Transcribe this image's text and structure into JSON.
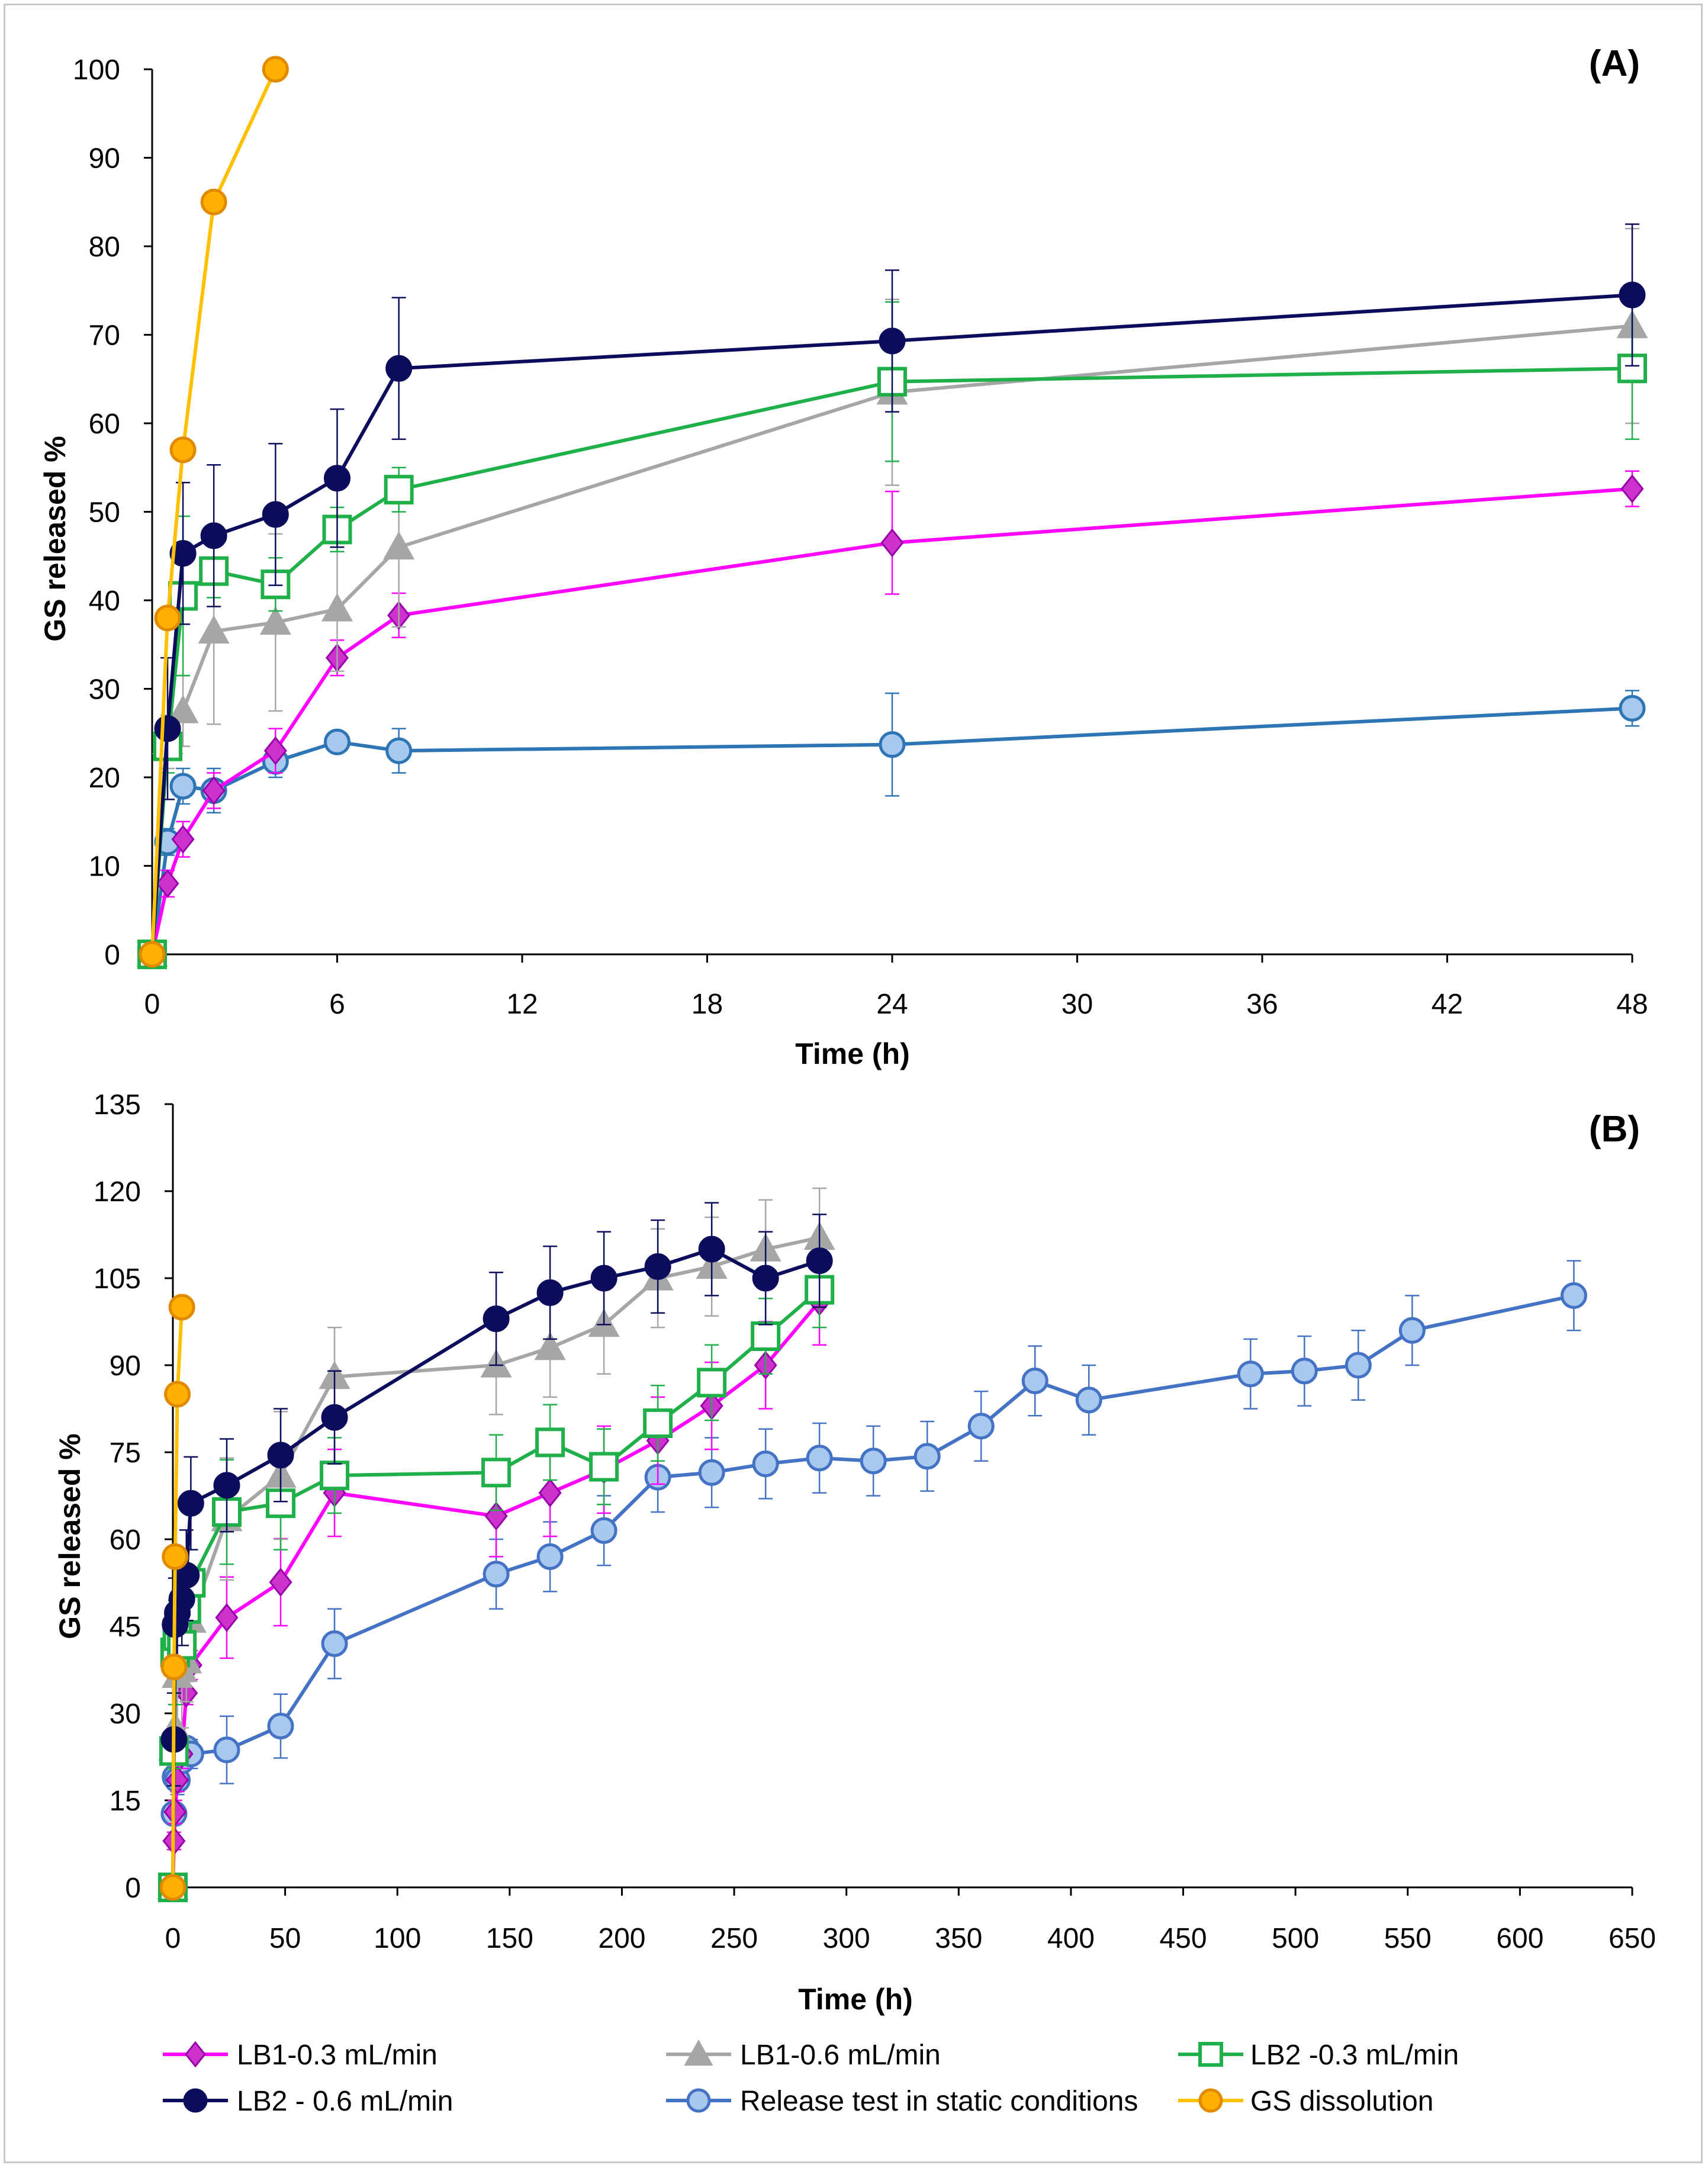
{
  "chart_data": [
    {
      "id": "A",
      "type": "line",
      "panel_label": "(A)",
      "xlabel": "Time (h)",
      "ylabel": "GS released %",
      "xlim": [
        0,
        48
      ],
      "ylim": [
        0,
        100
      ],
      "x_ticks": [
        0,
        6,
        12,
        18,
        24,
        30,
        36,
        42,
        48
      ],
      "y_ticks": [
        0,
        10,
        20,
        30,
        40,
        50,
        60,
        70,
        80,
        90,
        100
      ],
      "series": [
        {
          "key": "lb1_03",
          "name": "LB1-0.3 mL/min",
          "x": [
            0,
            0.5,
            1,
            2,
            4,
            6,
            8,
            24,
            48
          ],
          "y": [
            0,
            8,
            13,
            18.5,
            23,
            33.5,
            38.3,
            46.5,
            52.6
          ],
          "err": [
            0,
            1.5,
            2,
            2,
            2.5,
            2,
            2.5,
            5.8,
            2
          ]
        },
        {
          "key": "lb1_06",
          "name": "LB1-0.6 mL/min",
          "x": [
            0,
            0.5,
            1,
            2,
            4,
            6,
            8,
            24,
            48
          ],
          "y": [
            0,
            24,
            27.5,
            36.5,
            37.5,
            39,
            46,
            63.5,
            71
          ],
          "err": [
            0,
            3,
            4,
            10.5,
            10,
            7,
            9,
            10.5,
            11
          ]
        },
        {
          "key": "lb2_03",
          "name": "LB2 -0.3 mL/min",
          "x": [
            0,
            0.5,
            1,
            2,
            4,
            6,
            8,
            24,
            48
          ],
          "y": [
            0,
            23.5,
            40.5,
            43.3,
            41.8,
            48,
            52.5,
            64.7,
            66.2
          ],
          "err": [
            0,
            3,
            9,
            3,
            3,
            2.5,
            2.5,
            9,
            8
          ]
        },
        {
          "key": "lb2_06",
          "name": "LB2 - 0.6 mL/min",
          "x": [
            0,
            0.5,
            1,
            2,
            4,
            6,
            8,
            24,
            48
          ],
          "y": [
            0,
            25.5,
            45.3,
            47.3,
            49.7,
            53.8,
            66.2,
            69.3,
            74.5
          ],
          "err": [
            0,
            8,
            8,
            8,
            8,
            7.8,
            8,
            8,
            8
          ]
        },
        {
          "key": "static",
          "name": "Release test in static conditions",
          "x": [
            0,
            0.5,
            1,
            2,
            4,
            6,
            8,
            24,
            48
          ],
          "y": [
            0,
            12.7,
            19,
            18.5,
            21.8,
            24,
            23,
            23.7,
            27.8
          ],
          "err": [
            0,
            1.5,
            2,
            2.5,
            1.8,
            0.5,
            2.5,
            5.8,
            2
          ]
        },
        {
          "key": "dissolution",
          "name": "GS dissolution",
          "x": [
            0,
            0.5,
            1,
            2,
            4
          ],
          "y": [
            0,
            38,
            57,
            85,
            100
          ],
          "err": [
            0,
            0,
            0,
            0,
            0
          ]
        }
      ]
    },
    {
      "id": "B",
      "type": "line",
      "panel_label": "(B)",
      "xlabel": "Time (h)",
      "ylabel": "GS  released %",
      "xlim": [
        0,
        650
      ],
      "ylim": [
        0,
        135
      ],
      "x_ticks": [
        0,
        50,
        100,
        150,
        200,
        250,
        300,
        350,
        400,
        450,
        500,
        550,
        600,
        650
      ],
      "y_ticks": [
        0,
        15,
        30,
        45,
        60,
        75,
        90,
        105,
        120,
        135
      ],
      "series": [
        {
          "key": "lb1_03",
          "name": "LB1-0.3 mL/min",
          "x": [
            0,
            0.5,
            1,
            2,
            4,
            6,
            8,
            24,
            48,
            72,
            144,
            168,
            192,
            216,
            240,
            264,
            288
          ],
          "y": [
            0,
            8,
            13,
            18.5,
            23,
            33.5,
            38.3,
            46.5,
            52.6,
            68,
            64,
            68,
            72,
            77,
            83,
            90,
            101
          ],
          "err": [
            0,
            1.5,
            2,
            2,
            2.5,
            2,
            2.5,
            7,
            7.5,
            7.5,
            7,
            7.5,
            7.5,
            7.5,
            7.5,
            7.5,
            7.5
          ]
        },
        {
          "key": "lb1_06",
          "name": "LB1-0.6 mL/min",
          "x": [
            0,
            0.5,
            1,
            2,
            4,
            6,
            8,
            24,
            48,
            72,
            144,
            168,
            192,
            216,
            240,
            264,
            288
          ],
          "y": [
            0,
            24,
            27.5,
            36.5,
            37.5,
            39,
            46,
            63.5,
            71,
            88,
            90,
            93,
            97,
            105,
            107,
            110,
            112
          ],
          "err": [
            0,
            3,
            4,
            10.5,
            10,
            7,
            9,
            10.5,
            11,
            8.5,
            8.5,
            8.5,
            8.5,
            8.5,
            8.5,
            8.5,
            8.5
          ]
        },
        {
          "key": "lb2_03",
          "name": "LB2 -0.3 mL/min",
          "x": [
            0,
            0.5,
            1,
            2,
            4,
            6,
            8,
            24,
            48,
            72,
            144,
            168,
            192,
            216,
            240,
            264,
            288
          ],
          "y": [
            0,
            23.5,
            40.5,
            43.3,
            41.8,
            48,
            52.5,
            64.7,
            66.2,
            71,
            71.5,
            76.7,
            72.5,
            80,
            87,
            95,
            103
          ],
          "err": [
            0,
            3,
            9,
            3,
            3,
            2.5,
            2.5,
            9,
            8,
            6.5,
            6.5,
            6.5,
            6.5,
            6.5,
            6.5,
            6.5,
            6.5
          ]
        },
        {
          "key": "lb2_06",
          "name": "LB2 - 0.6 mL/min",
          "x": [
            0,
            0.5,
            1,
            2,
            4,
            6,
            8,
            24,
            48,
            72,
            144,
            168,
            192,
            216,
            240,
            264,
            288
          ],
          "y": [
            0,
            25.5,
            45.3,
            47.3,
            49.7,
            53.8,
            66.2,
            69.3,
            74.5,
            81,
            98,
            102.5,
            105,
            107,
            110,
            105,
            108
          ],
          "err": [
            0,
            8,
            8,
            8,
            8,
            7.8,
            8,
            8,
            8,
            8,
            8,
            8,
            8,
            8,
            8,
            8,
            8
          ]
        },
        {
          "key": "static",
          "name": "Release test in static conditions",
          "x": [
            0,
            0.5,
            1,
            2,
            4,
            6,
            8,
            24,
            48,
            72,
            144,
            168,
            192,
            216,
            240,
            264,
            288,
            312,
            336,
            360,
            384,
            408,
            480,
            504,
            528,
            552,
            624
          ],
          "y": [
            0,
            12.7,
            19,
            18.5,
            21.8,
            24,
            23,
            23.7,
            27.8,
            42,
            54,
            57,
            61.5,
            70.7,
            71.5,
            73,
            74,
            73.5,
            74.3,
            79.5,
            87.3,
            84,
            88.5,
            89,
            90,
            96,
            102
          ],
          "err": [
            0,
            1.5,
            2,
            2.5,
            1.8,
            0.5,
            2.5,
            5.8,
            5.5,
            6,
            6,
            6,
            6,
            6,
            6,
            6,
            6,
            6,
            6,
            6,
            6,
            6,
            6,
            6,
            6,
            6,
            6
          ]
        },
        {
          "key": "dissolution",
          "name": "GS dissolution",
          "x": [
            0,
            0.5,
            1,
            2,
            4
          ],
          "y": [
            0,
            38,
            57,
            85,
            100
          ],
          "err": [
            0,
            0,
            0,
            0,
            0
          ]
        }
      ]
    }
  ],
  "series_styles": {
    "lb1_03": {
      "color": "#ff00ff",
      "fill": "#cc33cc",
      "stroke": "#9900aa",
      "marker": "diamond"
    },
    "lb1_06": {
      "color": "#a6a6a6",
      "fill": "#a6a6a6",
      "stroke": "#a6a6a6",
      "marker": "triangle"
    },
    "lb2_03": {
      "color": "#1fb04a",
      "fill": "#ffffff",
      "stroke": "#1fb04a",
      "marker": "square"
    },
    "lb2_06": {
      "color": "#0c0c5c",
      "fill": "#0c0c5c",
      "stroke": "#0c0c5c",
      "marker": "circle"
    },
    "static_a": {
      "color": "#2e75b6",
      "fill": "#a9c8ee",
      "stroke": "#2e75b6",
      "marker": "circle"
    },
    "static_b": {
      "color": "#4472c4",
      "fill": "#a9c8ee",
      "stroke": "#4472c4",
      "marker": "circle"
    },
    "dissolution": {
      "color": "#ffc000",
      "fill": "#ffb000",
      "stroke": "#e08a00",
      "marker": "circle"
    }
  },
  "legend": {
    "items": [
      {
        "key": "lb1_03",
        "label": "LB1-0.3 mL/min"
      },
      {
        "key": "lb1_06",
        "label": "LB1-0.6 mL/min"
      },
      {
        "key": "lb2_03",
        "label": "LB2 -0.3 mL/min"
      },
      {
        "key": "lb2_06",
        "label": "LB2 - 0.6 mL/min"
      },
      {
        "key": "static",
        "label": "Release test in static conditions"
      },
      {
        "key": "dissolution",
        "label": "GS dissolution"
      }
    ]
  }
}
